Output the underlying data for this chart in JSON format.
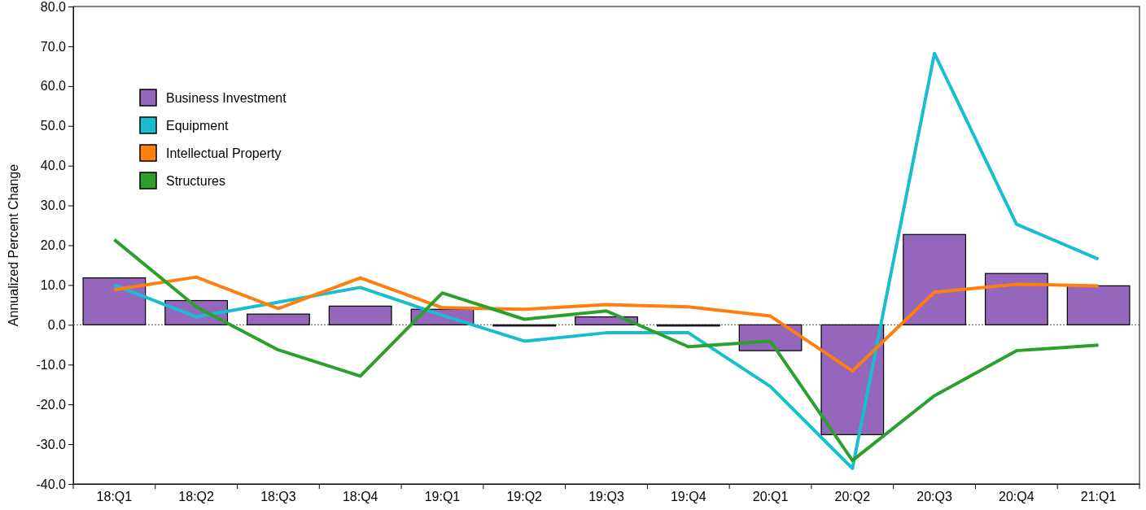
{
  "chart_data": {
    "type": "bar",
    "ylabel": "Annualized Percent Change",
    "categories": [
      "18:Q1",
      "18:Q2",
      "18:Q3",
      "18:Q4",
      "19:Q1",
      "19:Q2",
      "19:Q3",
      "19:Q4",
      "20:Q1",
      "20:Q2",
      "20:Q3",
      "20:Q4",
      "21:Q1"
    ],
    "series": [
      {
        "name": "Business Investment",
        "color": "#9467bd",
        "values": [
          11.8,
          6.1,
          2.7,
          4.7,
          3.9,
          -0.3,
          2.0,
          -0.3,
          -6.5,
          -27.6,
          22.7,
          12.9,
          9.8
        ]
      },
      {
        "name": "Equipment",
        "type": "line",
        "color": "#17becf",
        "values": [
          10.0,
          2.0,
          5.7,
          9.4,
          2.4,
          -4.1,
          -2.0,
          -2.0,
          -15.5,
          -36.1,
          68.2,
          25.3,
          16.5
        ]
      },
      {
        "name": "Intellectual Property",
        "type": "line",
        "color": "#ff7f0e",
        "values": [
          8.8,
          12.0,
          4.1,
          11.8,
          4.3,
          3.9,
          5.1,
          4.5,
          2.2,
          -11.6,
          8.2,
          10.2,
          9.8
        ]
      },
      {
        "name": "Structures",
        "type": "line",
        "color": "#2ca02c",
        "values": [
          21.4,
          4.5,
          -6.3,
          -12.9,
          8.0,
          1.4,
          3.5,
          -5.5,
          -4.1,
          -34.1,
          -17.8,
          -6.5,
          -5.1
        ]
      }
    ],
    "ylim": [
      -40,
      80
    ],
    "yticks": [
      {
        "value": -40,
        "label": "-40.0"
      },
      {
        "value": -30,
        "label": "-30.0"
      },
      {
        "value": -20,
        "label": "-20.0"
      },
      {
        "value": -10,
        "label": "-10.0"
      },
      {
        "value": 0,
        "label": "0.0"
      },
      {
        "value": 10,
        "label": "10.0"
      },
      {
        "value": 20,
        "label": "20.0"
      },
      {
        "value": 30,
        "label": "30.0"
      },
      {
        "value": 40,
        "label": "40.0"
      },
      {
        "value": 50,
        "label": "50.0"
      },
      {
        "value": 60,
        "label": "60.0"
      },
      {
        "value": 70,
        "label": "70.0"
      },
      {
        "value": 80,
        "label": "80.0"
      }
    ],
    "ref_lines": [
      {
        "axis": "y",
        "value": 0,
        "color": "#555555",
        "line_style": "dotted"
      }
    ],
    "legend": "top left",
    "marker": "none",
    "line_style": "solid"
  }
}
